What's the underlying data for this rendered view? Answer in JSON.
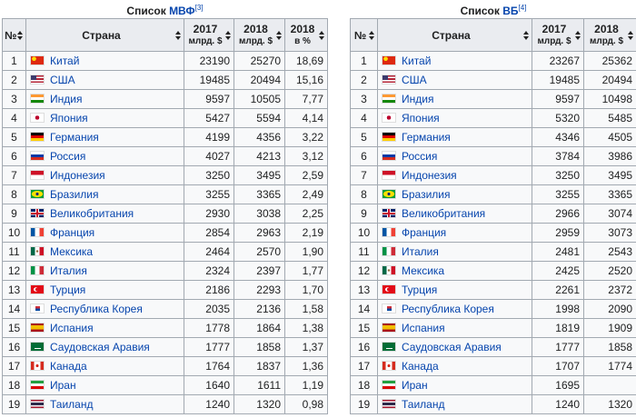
{
  "tables": [
    {
      "caption": {
        "text": "Список",
        "link": "МВФ",
        "ref": "[3]"
      },
      "columns": [
        {
          "label": "№"
        },
        {
          "label": "Страна"
        },
        {
          "label": "2017",
          "unit": "млрд. $"
        },
        {
          "label": "2018",
          "unit": "млрд. $"
        },
        {
          "label": "2018",
          "unit": "в %"
        }
      ],
      "rows": [
        [
          1,
          "Китай",
          23190,
          25270,
          "18,69"
        ],
        [
          2,
          "США",
          19485,
          20494,
          "15,16"
        ],
        [
          3,
          "Индия",
          9597,
          10505,
          "7,77"
        ],
        [
          4,
          "Япония",
          5427,
          5594,
          "4,14"
        ],
        [
          5,
          "Германия",
          4199,
          4356,
          "3,22"
        ],
        [
          6,
          "Россия",
          4027,
          4213,
          "3,12"
        ],
        [
          7,
          "Индонезия",
          3250,
          3495,
          "2,59"
        ],
        [
          8,
          "Бразилия",
          3255,
          3365,
          "2,49"
        ],
        [
          9,
          "Великобритания",
          2930,
          3038,
          "2,25"
        ],
        [
          10,
          "Франция",
          2854,
          2963,
          "2,19"
        ],
        [
          11,
          "Мексика",
          2464,
          2570,
          "1,90"
        ],
        [
          12,
          "Италия",
          2324,
          2397,
          "1,77"
        ],
        [
          13,
          "Турция",
          2186,
          2293,
          "1,70"
        ],
        [
          14,
          "Республика Корея",
          2035,
          2136,
          "1,58"
        ],
        [
          15,
          "Испания",
          1778,
          1864,
          "1,38"
        ],
        [
          16,
          "Саудовская Аравия",
          1777,
          1858,
          "1,37"
        ],
        [
          17,
          "Канада",
          1764,
          1837,
          "1,36"
        ],
        [
          18,
          "Иран",
          1640,
          1611,
          "1,19"
        ],
        [
          19,
          "Таиланд",
          1240,
          1320,
          "0,98"
        ]
      ]
    },
    {
      "caption": {
        "text": "Список",
        "link": "ВБ",
        "ref": "[4]"
      },
      "columns": [
        {
          "label": "№"
        },
        {
          "label": "Страна"
        },
        {
          "label": "2017",
          "unit": "млрд. $"
        },
        {
          "label": "2018",
          "unit": "млрд. $"
        }
      ],
      "rows": [
        [
          1,
          "Китай",
          23267,
          25362
        ],
        [
          2,
          "США",
          19485,
          20494
        ],
        [
          3,
          "Индия",
          9597,
          10498
        ],
        [
          4,
          "Япония",
          5320,
          5485
        ],
        [
          5,
          "Германия",
          4346,
          4505
        ],
        [
          6,
          "Россия",
          3784,
          3986
        ],
        [
          7,
          "Индонезия",
          3250,
          3495
        ],
        [
          8,
          "Бразилия",
          3255,
          3365
        ],
        [
          9,
          "Великобритания",
          2966,
          3074
        ],
        [
          10,
          "Франция",
          2959,
          3073
        ],
        [
          11,
          "Италия",
          2481,
          2543
        ],
        [
          12,
          "Мексика",
          2425,
          2520
        ],
        [
          13,
          "Турция",
          2261,
          2372
        ],
        [
          14,
          "Республика Корея",
          1998,
          2090
        ],
        [
          15,
          "Испания",
          1819,
          1909
        ],
        [
          16,
          "Саудовская Аравия",
          1777,
          1858
        ],
        [
          17,
          "Канада",
          1707,
          1774
        ],
        [
          18,
          "Иран",
          1695,
          null
        ],
        [
          19,
          "Таиланд",
          1240,
          1320
        ]
      ]
    }
  ]
}
